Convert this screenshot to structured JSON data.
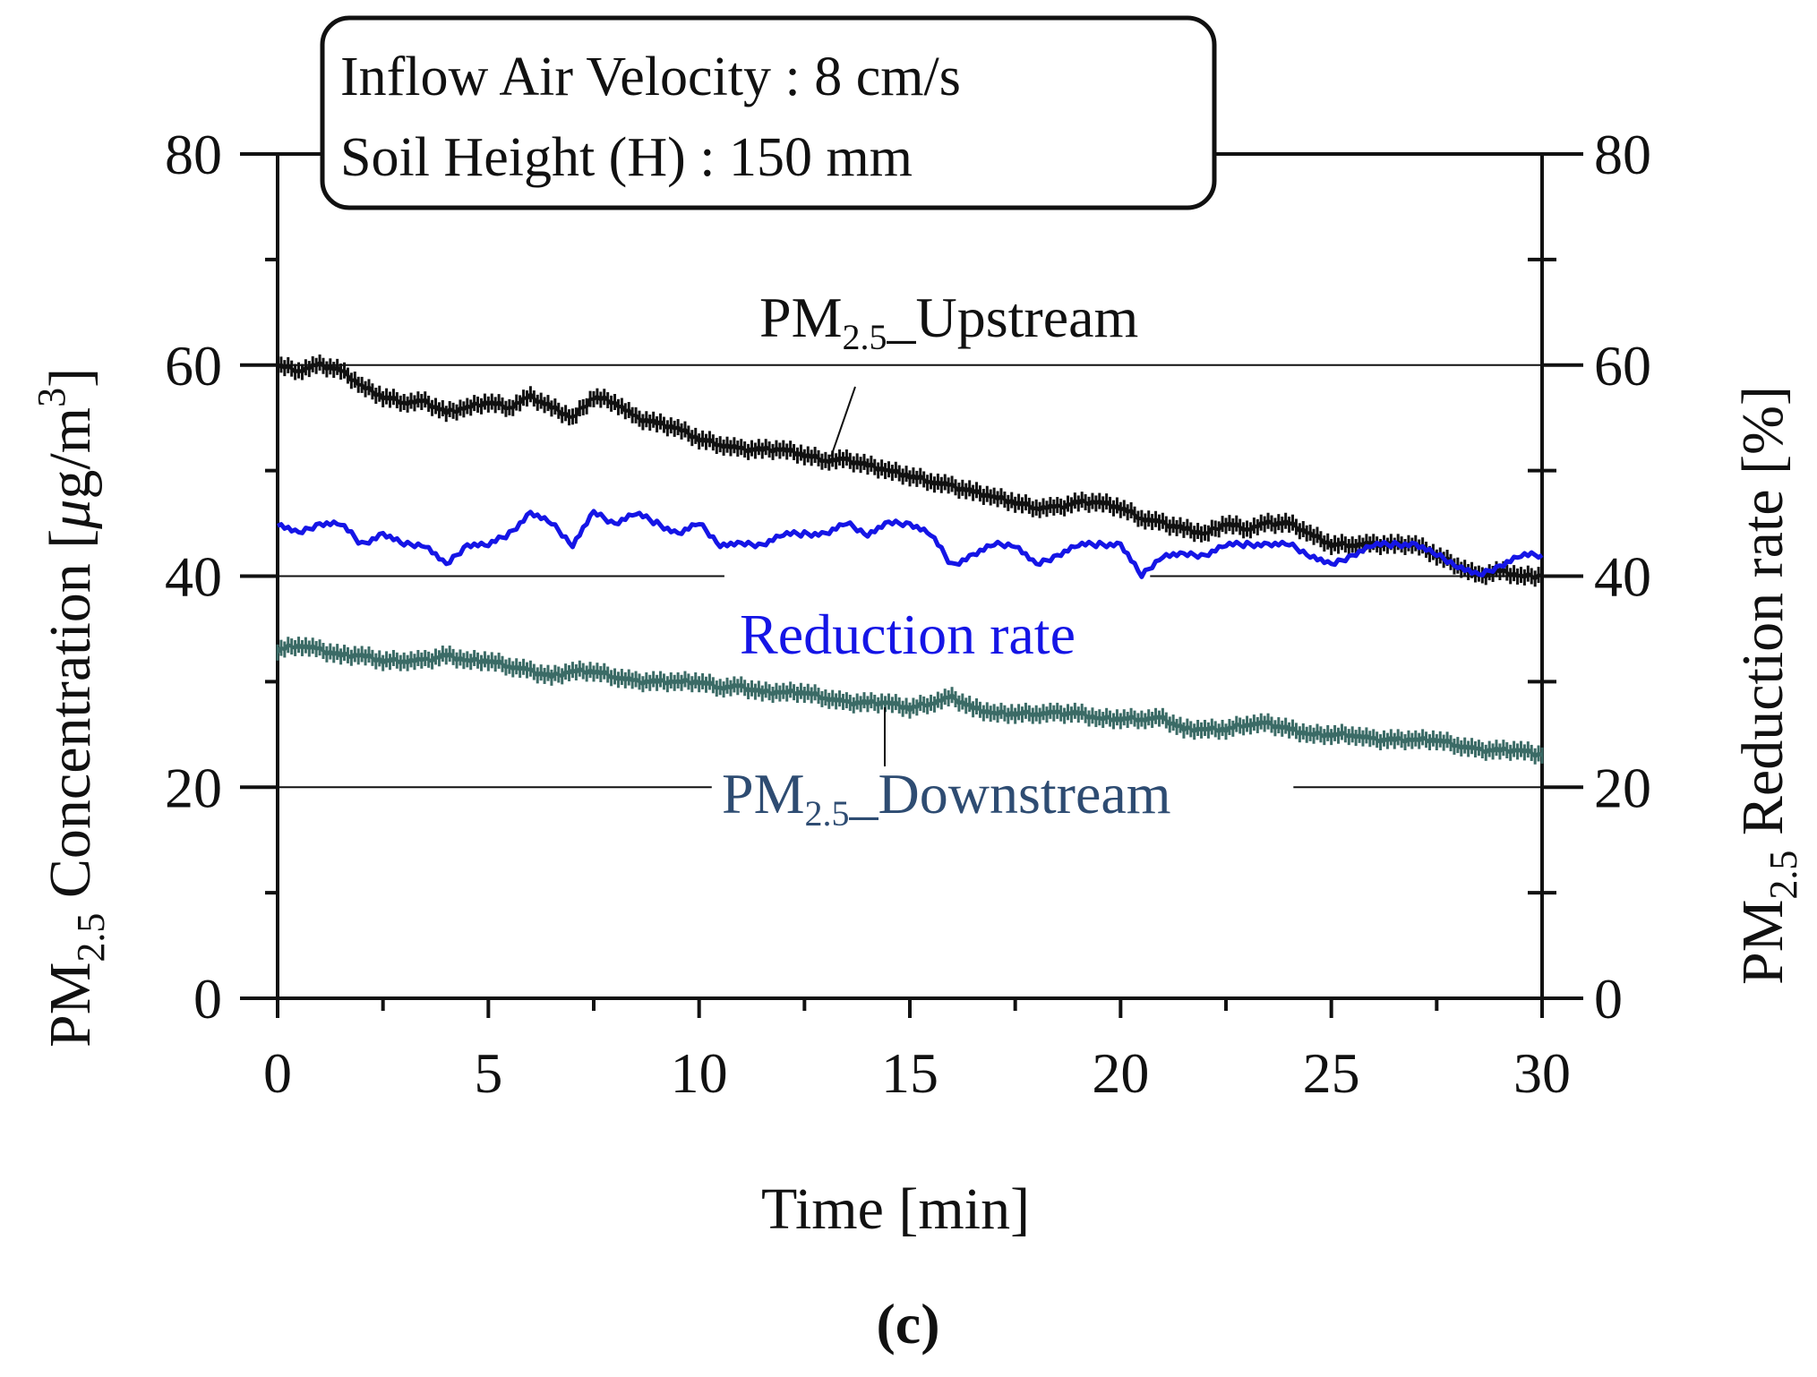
{
  "chart_data": {
    "type": "line",
    "info_box": {
      "line1": "Inflow Air Velocity : 8 cm/s",
      "line2": "Soil Height (H) : 150 mm"
    },
    "x_axis": {
      "title": "Time [min]",
      "range": [
        0,
        30
      ],
      "ticks": [
        0,
        5,
        10,
        15,
        20,
        25,
        30
      ]
    },
    "y_left": {
      "title_main": "PM",
      "title_sub": "2.5",
      "title_rest": " Concentration [",
      "title_mu": "μ",
      "title_unit": "g/m",
      "title_sup": "3",
      "title_end": "]",
      "range": [
        0,
        80
      ],
      "ticks": [
        0,
        20,
        40,
        60,
        80
      ]
    },
    "y_right": {
      "title_main": "PM",
      "title_sub": "2.5",
      "title_rest": " Reduction rate [%]",
      "range": [
        0,
        80
      ],
      "ticks": [
        0,
        20,
        40,
        60,
        80
      ]
    },
    "gridlines_y": [
      20,
      40,
      60
    ],
    "series": [
      {
        "name": "PM2.5_Upstream",
        "label_main": "PM",
        "label_sub": "2.5",
        "label_rest": "_Upstream",
        "color": "#111111",
        "marker": "plus",
        "x": [
          0,
          0.5,
          1,
          1.5,
          2,
          2.5,
          3,
          3.5,
          4,
          4.5,
          5,
          5.5,
          6,
          6.5,
          7,
          7.5,
          8,
          8.5,
          9,
          9.5,
          10,
          10.5,
          11,
          11.5,
          12,
          12.5,
          13,
          13.5,
          14,
          14.5,
          15,
          15.5,
          16,
          16.5,
          17,
          17.5,
          18,
          18.5,
          19,
          19.5,
          20,
          20.5,
          21,
          21.5,
          22,
          22.5,
          23,
          23.5,
          24,
          24.5,
          25,
          25.5,
          26,
          26.5,
          27,
          27.5,
          28,
          28.5,
          29,
          29.5,
          30
        ],
        "y": [
          60,
          59.5,
          60,
          59.5,
          58,
          57,
          56.5,
          56.5,
          55.5,
          56,
          56.5,
          56,
          57,
          56,
          55,
          57,
          56.5,
          55,
          54.5,
          54,
          53,
          52.5,
          52,
          52,
          52,
          51.5,
          51,
          51,
          50.5,
          50,
          49.5,
          49,
          48.5,
          48,
          47.5,
          47,
          46.5,
          46.5,
          47,
          47,
          46.5,
          45.5,
          45,
          44.5,
          44,
          45,
          44.5,
          45,
          45,
          44,
          43,
          43,
          43,
          43,
          43,
          42,
          41,
          40,
          40.5,
          40,
          40
        ]
      },
      {
        "name": "Reduction rate",
        "label_main": "Reduction rate",
        "color": "#1515e6",
        "marker": "none",
        "x": [
          0,
          0.5,
          1,
          1.5,
          2,
          2.5,
          3,
          3.5,
          4,
          4.5,
          5,
          5.5,
          6,
          6.5,
          7,
          7.5,
          8,
          8.5,
          9,
          9.5,
          10,
          10.5,
          11,
          11.5,
          12,
          12.5,
          13,
          13.5,
          14,
          14.5,
          15,
          15.5,
          16,
          16.5,
          17,
          17.5,
          18,
          18.5,
          19,
          19.5,
          20,
          20.5,
          21,
          21.5,
          22,
          22.5,
          23,
          23.5,
          24,
          24.5,
          25,
          25.5,
          26,
          26.5,
          27,
          27.5,
          28,
          28.5,
          29,
          29.5,
          30
        ],
        "y": [
          45,
          44,
          45,
          45,
          43,
          44,
          43,
          43,
          41,
          43,
          43,
          44,
          46,
          45,
          43,
          46,
          45,
          46,
          45,
          44,
          45,
          43,
          43,
          43,
          44,
          44,
          44,
          45,
          44,
          45,
          45,
          44,
          41,
          42,
          43,
          43,
          41,
          42,
          43,
          43,
          43,
          40,
          42,
          42,
          42,
          43,
          43,
          43,
          43,
          42,
          41,
          42,
          43,
          43,
          43,
          42,
          41,
          40,
          41,
          42,
          42
        ]
      },
      {
        "name": "PM2.5_Downstream",
        "label_main": "PM",
        "label_sub": "2.5",
        "label_rest": "_Downstream",
        "color": "#3b6b66",
        "label_color": "#2e4c72",
        "marker": "plus",
        "x": [
          0,
          0.5,
          1,
          1.5,
          2,
          2.5,
          3,
          3.5,
          4,
          4.5,
          5,
          5.5,
          6,
          6.5,
          7,
          7.5,
          8,
          8.5,
          9,
          9.5,
          10,
          10.5,
          11,
          11.5,
          12,
          12.5,
          13,
          13.5,
          14,
          14.5,
          15,
          15.5,
          16,
          16.5,
          17,
          17.5,
          18,
          18.5,
          19,
          19.5,
          20,
          20.5,
          21,
          21.5,
          22,
          22.5,
          23,
          23.5,
          24,
          24.5,
          25,
          25.5,
          26,
          26.5,
          27,
          27.5,
          28,
          28.5,
          29,
          29.5,
          30
        ],
        "y": [
          33,
          33.5,
          33,
          32.5,
          32.5,
          32,
          32,
          32,
          32.5,
          32,
          32,
          31.5,
          31,
          30.5,
          31,
          31,
          30.5,
          30,
          30,
          30,
          30,
          29.5,
          29.5,
          29,
          29,
          29,
          28.5,
          28,
          28,
          28,
          27.5,
          28,
          28.5,
          27.5,
          27,
          27,
          27,
          27,
          27,
          26.5,
          26.5,
          26.5,
          26.5,
          25.5,
          25.5,
          25.5,
          26,
          26,
          25.5,
          25,
          25,
          25,
          24.5,
          24.5,
          24.5,
          24.5,
          24,
          23.5,
          23.5,
          23.5,
          23
        ]
      }
    ],
    "caption": "(c)"
  }
}
